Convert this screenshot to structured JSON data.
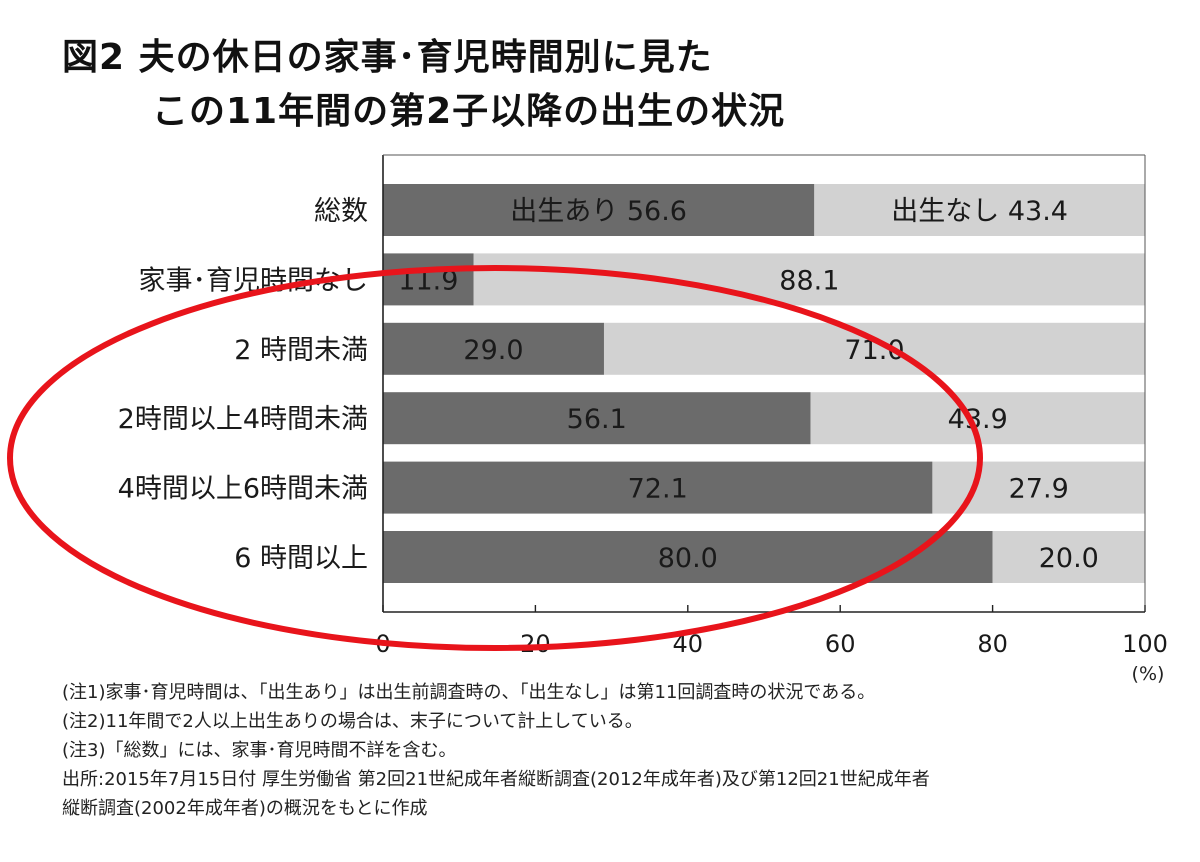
{
  "title": {
    "line1": "図2 夫の休日の家事･育児時間別に見た",
    "line2": "この11年間の第2子以降の出生の状況"
  },
  "chart_data": {
    "type": "bar",
    "orientation": "horizontal",
    "stacked": true,
    "categories": [
      "総数",
      "家事･育児時間なし",
      "2 時間未満",
      "2時間以上4時間未満",
      "4時間以上6時間未満",
      "6 時間以上"
    ],
    "series": [
      {
        "name": "出生あり",
        "values": [
          56.6,
          11.9,
          29.0,
          56.1,
          72.1,
          80.0
        ],
        "labels": [
          "出生あり 56.6",
          "11.9",
          "29.0",
          "56.1",
          "72.1",
          "80.0"
        ],
        "color": "#6b6b6b"
      },
      {
        "name": "出生なし",
        "values": [
          43.4,
          88.1,
          71.0,
          43.9,
          27.9,
          20.0
        ],
        "labels": [
          "出生なし 43.4",
          "88.1",
          "71.0",
          "43.9",
          "27.9",
          "20.0"
        ],
        "color": "#d2d2d2"
      }
    ],
    "xlim": [
      0,
      100
    ],
    "xticks": [
      0,
      20,
      40,
      60,
      80,
      100
    ],
    "xunit": "(%)",
    "grid": false,
    "annotation": "red ellipse highlighting rows 2時間未満 through 6時間以上"
  },
  "notes": [
    "(注1)家事･育児時間は、「出生あり」は出生前調査時の、「出生なし」は第11回調査時の状況である。",
    "(注2)11年間で2人以上出生ありの場合は、末子について計上している。",
    "(注3)「総数」には、家事･育児時間不詳を含む。",
    "出所:2015年7月15日付 厚生労働省 第2回21世紀成年者縦断調査(2012年成年者)及び第12回21世紀成年者",
    "縦断調査(2002年成年者)の概況をもとに作成"
  ],
  "colors": {
    "dark_bar": "#6b6b6b",
    "light_bar": "#d2d2d2",
    "highlight": "#e8141b"
  }
}
